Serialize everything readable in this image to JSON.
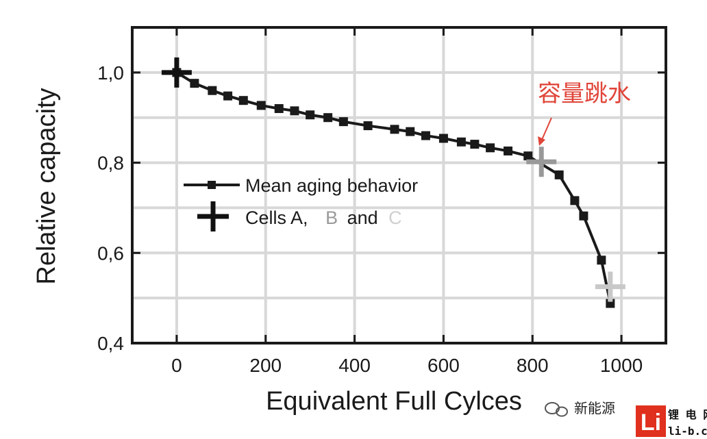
{
  "chart_data": {
    "type": "line",
    "title": "",
    "xlabel": "Equivalent Full Cylces",
    "ylabel": "Relative capacity",
    "xlim": [
      -100,
      1100
    ],
    "ylim": [
      0.4,
      1.1
    ],
    "xticks": [
      0,
      200,
      400,
      600,
      800,
      1000
    ],
    "xtick_labels": [
      "0",
      "200",
      "400",
      "600",
      "800",
      "1000"
    ],
    "yticks": [
      0.4,
      0.6,
      0.8,
      1.0
    ],
    "ytick_labels": [
      "0,4",
      "0,6",
      "0,8",
      "1,0"
    ],
    "grid": true,
    "series": [
      {
        "name": "Mean aging behavior",
        "marker": "square",
        "color": "#1a1a1a",
        "x": [
          0,
          40,
          80,
          115,
          150,
          190,
          230,
          265,
          300,
          340,
          375,
          430,
          490,
          525,
          560,
          600,
          640,
          670,
          705,
          745,
          790,
          860,
          895,
          915,
          955,
          975
        ],
        "y": [
          1.0,
          0.976,
          0.96,
          0.948,
          0.938,
          0.927,
          0.92,
          0.915,
          0.906,
          0.9,
          0.891,
          0.882,
          0.874,
          0.869,
          0.86,
          0.854,
          0.846,
          0.841,
          0.833,
          0.826,
          0.815,
          0.773,
          0.716,
          0.682,
          0.584,
          0.488
        ]
      },
      {
        "name": "Cells A, B and C",
        "marker": "plus",
        "points": [
          {
            "label": "A",
            "x": 0,
            "y": 1.0,
            "color": "#111111"
          },
          {
            "label": "B",
            "x": 820,
            "y": 0.802,
            "color": "#999999"
          },
          {
            "label": "C",
            "x": 975,
            "y": 0.525,
            "color": "#c8c8c8"
          }
        ]
      }
    ],
    "legend": {
      "position": "center-left",
      "line_label": "Mean aging behavior",
      "cells_prefix": "Cells A,",
      "b": "B",
      "and": "and",
      "c": "C"
    },
    "annotations": [
      {
        "text": "容量跳水",
        "target_x": 810,
        "target_y": 0.812,
        "color": "#e0453a"
      }
    ]
  },
  "watermark": {
    "text": "新能源",
    "logo_letter": "Li",
    "logo_line1": "锂 电 网",
    "logo_line2": "li-b.cn"
  },
  "colors": {
    "axis": "#1a1a1a",
    "grid": "#d8d8d8",
    "line": "#1a1a1a",
    "accent": "#e0453a",
    "logo": "#e0301e"
  }
}
